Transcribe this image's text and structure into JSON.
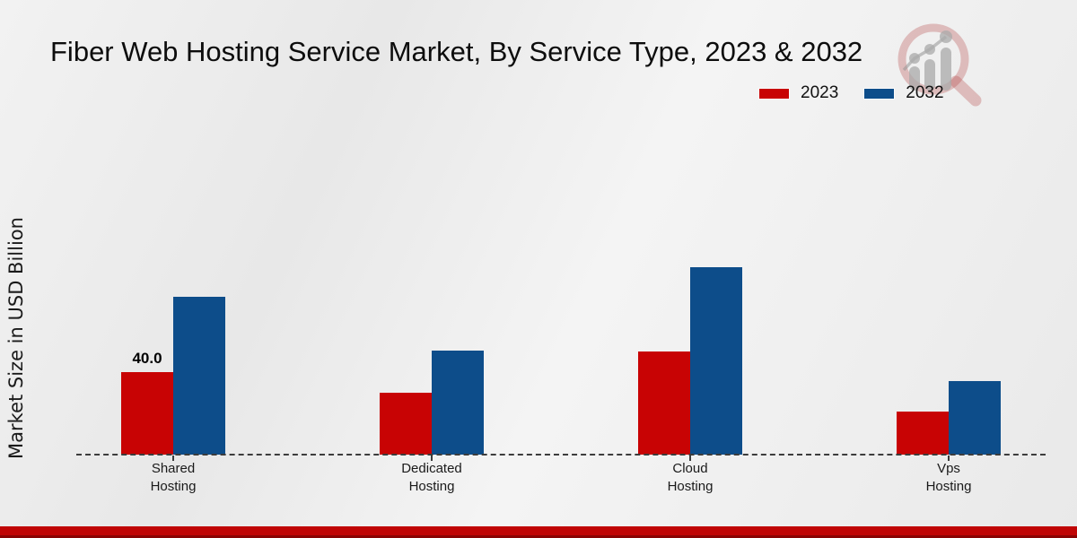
{
  "chart_data": {
    "type": "bar",
    "title": "Fiber Web Hosting Service Market, By Service Type, 2023 & 2032",
    "ylabel": "Market Size in USD Billion",
    "xlabel": "",
    "categories": [
      "Shared Hosting",
      "Dedicated Hosting",
      "Cloud Hosting",
      "Vps Hosting"
    ],
    "series": [
      {
        "name": "2023",
        "color": "#c80304",
        "values": [
          40.0,
          30.0,
          50.0,
          21.0
        ]
      },
      {
        "name": "2032",
        "color": "#0d4d8a",
        "values": [
          76.5,
          50.5,
          91.0,
          35.5
        ]
      }
    ],
    "annotations": [
      {
        "text": "40.0",
        "category_index": 0,
        "series_index": 0
      }
    ],
    "ylim": [
      0,
      100
    ],
    "grid": false,
    "y_axis_ticks_visible": false,
    "baseline_style": "dashed",
    "legend_position": "top-right"
  },
  "footer": {
    "color": "#c00505"
  },
  "icons": {
    "watermark": "magnifier-bar-chart-logo"
  }
}
